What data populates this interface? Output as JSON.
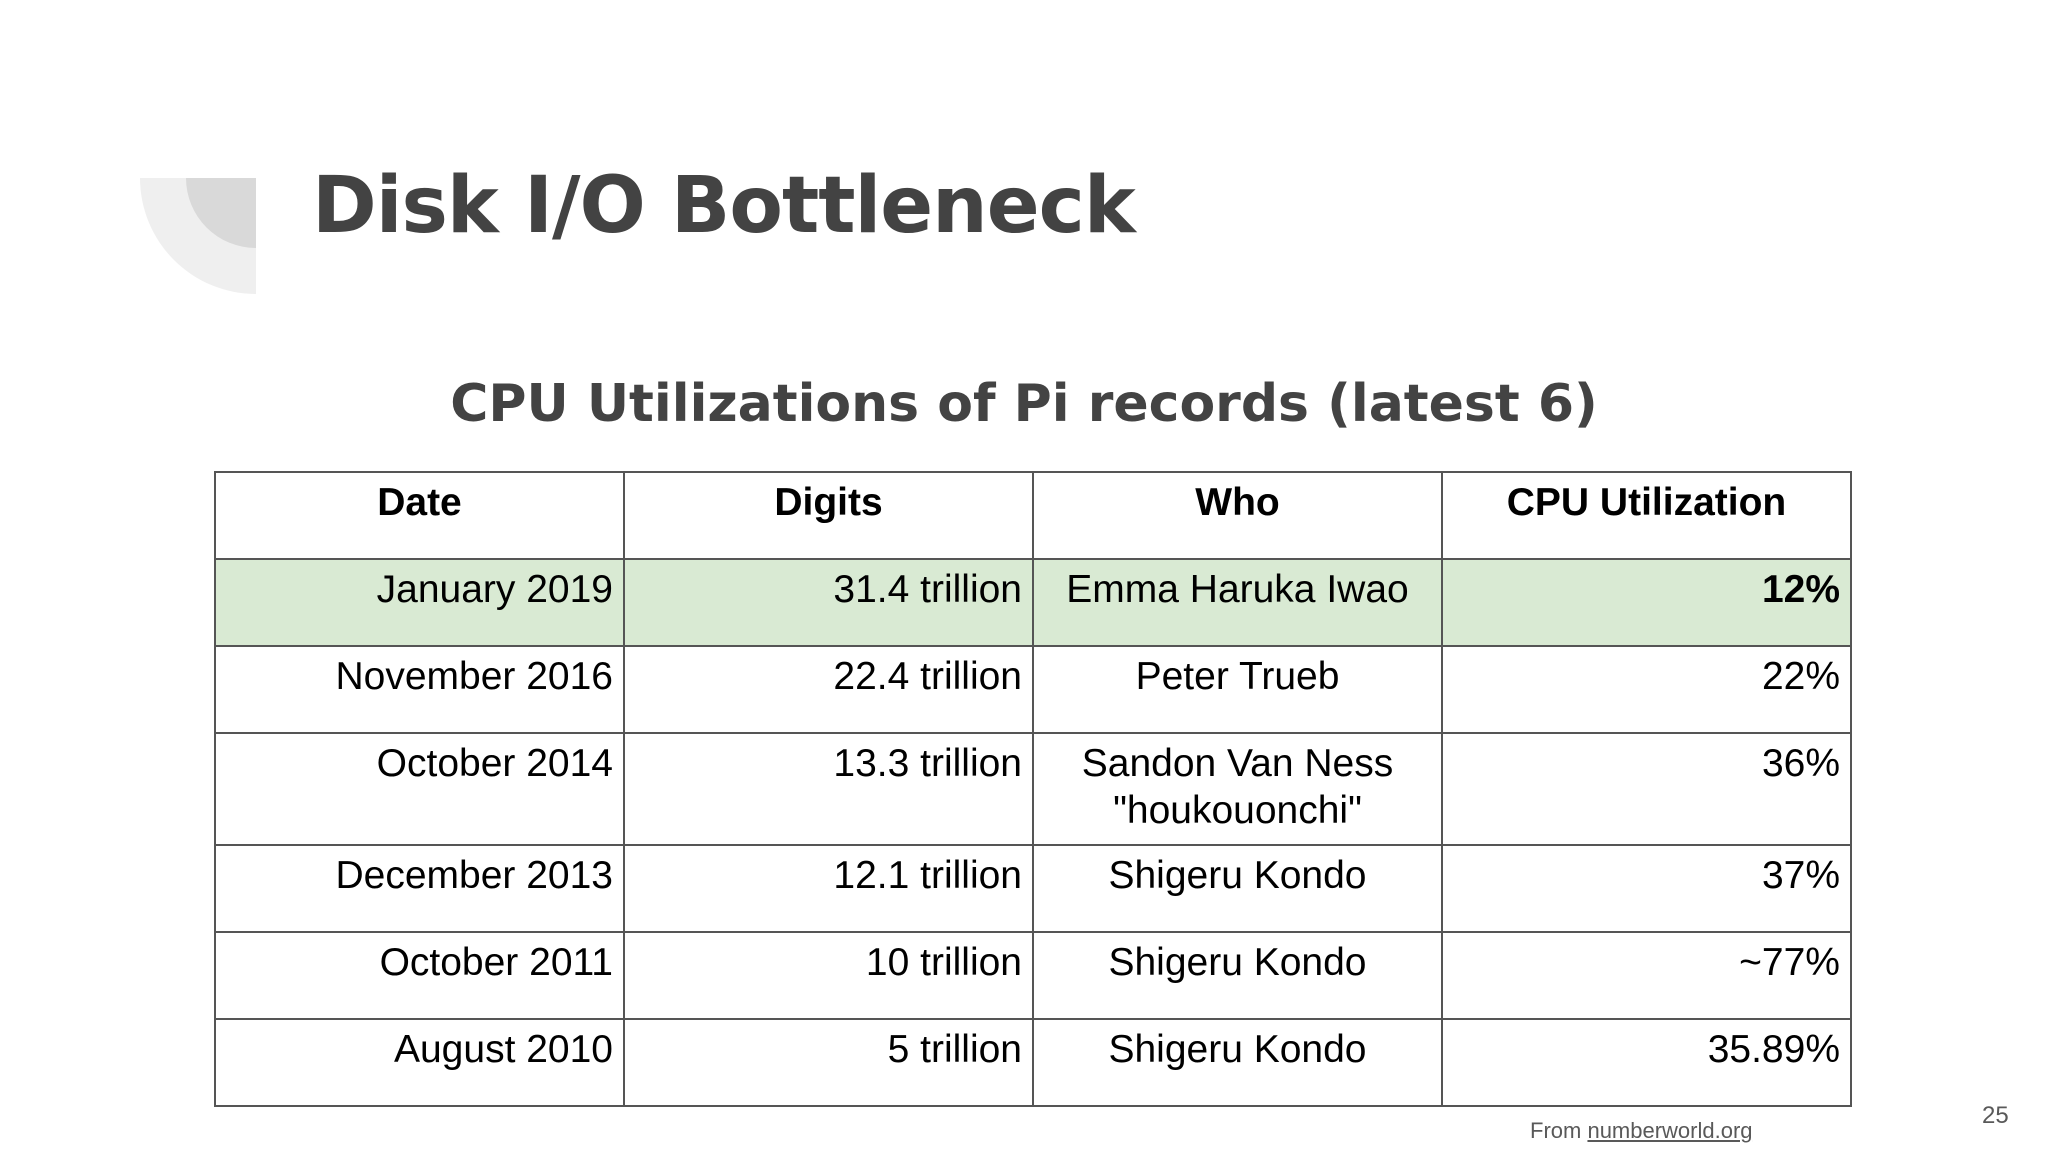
{
  "slide": {
    "title": "Disk I/O Bottleneck",
    "table_caption": "CPU Utilizations of Pi records (latest 6)",
    "source_prefix": "From",
    "source_link": "numberworld.org",
    "page_number": "25"
  },
  "colors": {
    "title": "#434343",
    "highlight_row": "#d9ead3",
    "decoration_light": "#efefef",
    "decoration_dark": "#d9d9d9"
  },
  "table": {
    "headers": [
      "Date",
      "Digits",
      "Who",
      "CPU Utilization"
    ],
    "rows": [
      {
        "date": "January 2019",
        "digits": "31.4 trillion",
        "who": "Emma Haruka Iwao",
        "who_line2": "",
        "cpu": "12%"
      },
      {
        "date": "November 2016",
        "digits": "22.4 trillion",
        "who": "Peter Trueb",
        "who_line2": "",
        "cpu": "22%"
      },
      {
        "date": "October 2014",
        "digits": "13.3 trillion",
        "who": "Sandon Van Ness",
        "who_line2": "\"houkouonchi\"",
        "cpu": "36%"
      },
      {
        "date": "December 2013",
        "digits": "12.1 trillion",
        "who": "Shigeru Kondo",
        "who_line2": "",
        "cpu": "37%"
      },
      {
        "date": "October 2011",
        "digits": "10 trillion",
        "who": "Shigeru Kondo",
        "who_line2": "",
        "cpu": "~77%"
      },
      {
        "date": "August 2010",
        "digits": "5 trillion",
        "who": "Shigeru Kondo",
        "who_line2": "",
        "cpu": "35.89%"
      }
    ]
  }
}
